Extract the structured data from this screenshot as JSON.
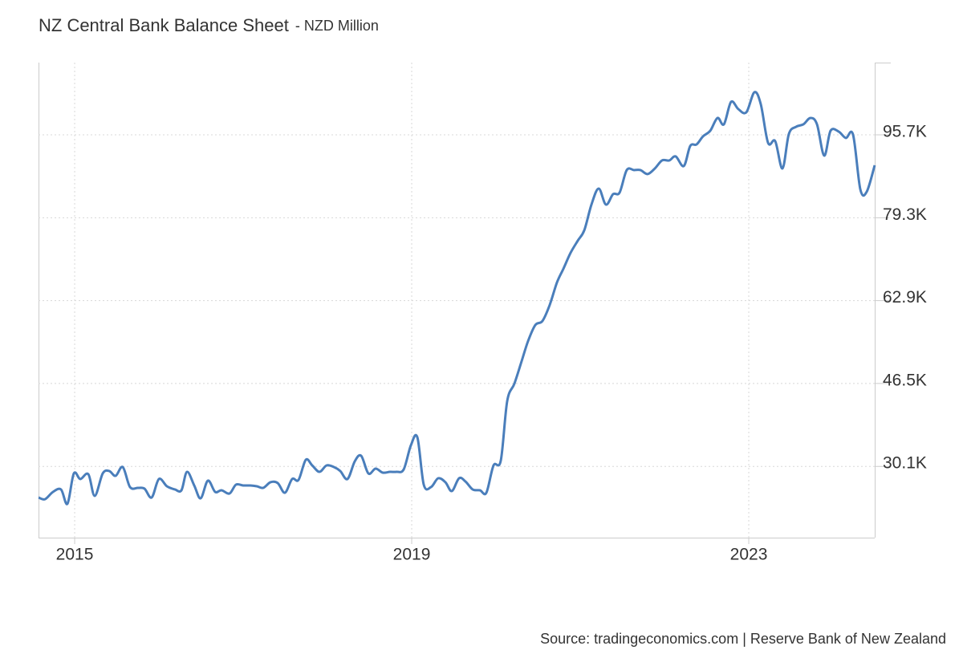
{
  "chart_data": {
    "type": "line",
    "title": "NZ Central Bank Balance Sheet",
    "subtitle": "- NZD Million",
    "source": "Source: tradingeconomics.com | Reserve Bank of New Zealand",
    "grid": true,
    "xlim": [
      2014.571,
      2024.495
    ],
    "xticks": [
      2015,
      2019,
      2023
    ],
    "ylim": [
      16000,
      110000
    ],
    "yticks": [
      {
        "value": 30100,
        "label": "30.1K"
      },
      {
        "value": 46500,
        "label": "46.5K"
      },
      {
        "value": 62900,
        "label": "62.9K"
      },
      {
        "value": 79300,
        "label": "79.3K"
      },
      {
        "value": 95700,
        "label": "95.7K"
      }
    ],
    "series": [
      {
        "name": "NZ Central Bank Balance Sheet",
        "color": "#4a7ebb",
        "x": [
          2014.571,
          2014.648,
          2014.743,
          2014.838,
          2014.914,
          2014.99,
          2015.067,
          2015.162,
          2015.238,
          2015.333,
          2015.41,
          2015.486,
          2015.571,
          2015.657,
          2015.752,
          2015.829,
          2015.914,
          2016.0,
          2016.095,
          2016.19,
          2016.267,
          2016.333,
          2016.419,
          2016.495,
          2016.581,
          2016.667,
          2016.743,
          2016.838,
          2016.914,
          2017.0,
          2017.086,
          2017.162,
          2017.238,
          2017.324,
          2017.41,
          2017.495,
          2017.581,
          2017.657,
          2017.743,
          2017.819,
          2017.905,
          2017.99,
          2018.076,
          2018.152,
          2018.238,
          2018.324,
          2018.4,
          2018.486,
          2018.571,
          2018.657,
          2018.743,
          2018.819,
          2018.905,
          2018.99,
          2019.067,
          2019.143,
          2019.229,
          2019.314,
          2019.4,
          2019.476,
          2019.562,
          2019.638,
          2019.724,
          2019.81,
          2019.886,
          2019.971,
          2020.057,
          2020.133,
          2020.219,
          2020.305,
          2020.381,
          2020.467,
          2020.552,
          2020.638,
          2020.724,
          2020.8,
          2020.886,
          2020.971,
          2021.048,
          2021.133,
          2021.219,
          2021.305,
          2021.39,
          2021.467,
          2021.552,
          2021.638,
          2021.714,
          2021.8,
          2021.886,
          2021.971,
          2022.057,
          2022.133,
          2022.229,
          2022.305,
          2022.381,
          2022.457,
          2022.543,
          2022.629,
          2022.705,
          2022.79,
          2022.876,
          2022.971,
          2023.067,
          2023.143,
          2023.229,
          2023.314,
          2023.4,
          2023.476,
          2023.562,
          2023.648,
          2023.733,
          2023.81,
          2023.895,
          2023.971,
          2024.067,
          2024.152,
          2024.238,
          2024.324,
          2024.4,
          2024.495
        ],
        "values": [
          23940,
          23600,
          25050,
          25530,
          22700,
          28700,
          27600,
          28550,
          24260,
          28700,
          29180,
          28230,
          29970,
          26000,
          25850,
          25690,
          23940,
          27600,
          26160,
          25530,
          25370,
          29020,
          26320,
          23780,
          27270,
          25050,
          25370,
          24730,
          26480,
          26320,
          26320,
          26160,
          25850,
          26960,
          26800,
          24890,
          27600,
          27430,
          31400,
          30290,
          29020,
          30290,
          29970,
          29180,
          27600,
          31090,
          32200,
          28700,
          29660,
          28860,
          29020,
          29020,
          29500,
          34260,
          35850,
          26480,
          26000,
          27750,
          26960,
          25210,
          27750,
          27110,
          25530,
          25370,
          24890,
          30290,
          31240,
          43000,
          46490,
          50940,
          54900,
          58080,
          58880,
          62050,
          66500,
          69200,
          72370,
          74760,
          76820,
          81900,
          85080,
          81900,
          83970,
          84280,
          88730,
          88730,
          88730,
          87940,
          89050,
          90640,
          90640,
          91430,
          89530,
          93490,
          93810,
          95400,
          96510,
          99050,
          97780,
          102230,
          100800,
          100160,
          104130,
          101750,
          94130,
          94450,
          89050,
          95870,
          97300,
          97780,
          99050,
          97780,
          91590,
          96510,
          96350,
          95080,
          95720,
          84920,
          84440,
          89690
        ]
      }
    ]
  }
}
